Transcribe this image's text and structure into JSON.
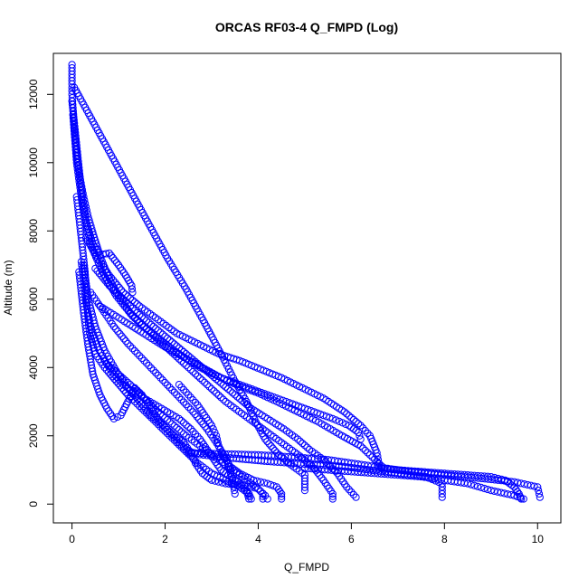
{
  "chart_data": {
    "type": "scatter",
    "title": "ORCAS RF03-4 Q_FMPD (Log)",
    "xlabel": "Q_FMPD",
    "ylabel": "Altitude (m)",
    "xlim": [
      -0.4,
      10.5
    ],
    "ylim": [
      -550,
      13200
    ],
    "x_ticks": [
      0,
      2,
      4,
      6,
      8,
      10
    ],
    "y_ticks": [
      0,
      2000,
      4000,
      6000,
      8000,
      10000,
      12000
    ],
    "marker": "open-circle",
    "color": "#0000ff",
    "grid": false,
    "series": [
      {
        "points": [
          [
            0.0,
            12870
          ],
          [
            0.0,
            12300
          ],
          [
            0.0,
            12000
          ],
          [
            0.02,
            11600
          ],
          [
            0.05,
            11000
          ],
          [
            0.08,
            10500
          ],
          [
            0.12,
            10000
          ],
          [
            0.18,
            9500
          ],
          [
            0.25,
            9000
          ],
          [
            0.35,
            8400
          ],
          [
            0.48,
            7800
          ],
          [
            0.62,
            7200
          ],
          [
            0.8,
            6600
          ],
          [
            1.0,
            6100
          ],
          [
            1.25,
            5600
          ],
          [
            1.55,
            5200
          ],
          [
            1.9,
            4800
          ],
          [
            2.3,
            4400
          ],
          [
            2.75,
            4000
          ],
          [
            3.2,
            3700
          ],
          [
            3.6,
            3450
          ],
          [
            4.0,
            3250
          ],
          [
            4.4,
            3000
          ],
          [
            4.85,
            2700
          ],
          [
            5.3,
            2400
          ],
          [
            5.8,
            2000
          ],
          [
            6.2,
            1700
          ],
          [
            6.7,
            1050
          ],
          [
            7.3,
            950
          ],
          [
            8.0,
            850
          ],
          [
            8.8,
            750
          ],
          [
            9.5,
            650
          ],
          [
            10.0,
            500
          ],
          [
            10.05,
            200
          ]
        ]
      },
      {
        "points": [
          [
            0.05,
            12200
          ],
          [
            0.45,
            11200
          ],
          [
            0.85,
            10200
          ],
          [
            1.25,
            9200
          ],
          [
            1.65,
            8200
          ],
          [
            2.05,
            7200
          ],
          [
            2.45,
            6300
          ],
          [
            2.85,
            5300
          ],
          [
            3.2,
            4400
          ],
          [
            3.5,
            3600
          ],
          [
            3.75,
            3000
          ],
          [
            3.95,
            2400
          ],
          [
            4.15,
            1900
          ],
          [
            4.4,
            1500
          ],
          [
            4.7,
            1150
          ],
          [
            5.0,
            850
          ],
          [
            5.0,
            400
          ]
        ]
      },
      {
        "points": [
          [
            0.0,
            11800
          ],
          [
            0.1,
            10500
          ],
          [
            0.2,
            9200
          ],
          [
            0.3,
            8300
          ],
          [
            0.45,
            7600
          ],
          [
            0.6,
            7300
          ],
          [
            0.8,
            7350
          ],
          [
            1.0,
            7000
          ],
          [
            1.15,
            6700
          ],
          [
            1.28,
            6400
          ],
          [
            1.3,
            6200
          ]
        ]
      },
      {
        "points": [
          [
            0.02,
            11400
          ],
          [
            0.1,
            10000
          ],
          [
            0.22,
            8800
          ],
          [
            0.4,
            7600
          ],
          [
            0.65,
            6800
          ],
          [
            0.95,
            6100
          ],
          [
            1.3,
            5500
          ],
          [
            1.7,
            5000
          ],
          [
            2.1,
            4500
          ],
          [
            2.5,
            4000
          ],
          [
            2.9,
            3500
          ],
          [
            3.3,
            3000
          ],
          [
            3.7,
            2600
          ],
          [
            4.1,
            2200
          ],
          [
            4.5,
            1800
          ],
          [
            4.9,
            1400
          ],
          [
            5.2,
            1050
          ],
          [
            5.4,
            700
          ],
          [
            5.6,
            300
          ],
          [
            5.6,
            150
          ]
        ]
      },
      {
        "points": [
          [
            0.1,
            9000
          ],
          [
            0.2,
            7800
          ],
          [
            0.28,
            6800
          ],
          [
            0.32,
            5800
          ],
          [
            0.38,
            5000
          ],
          [
            0.5,
            4400
          ],
          [
            0.7,
            4000
          ],
          [
            0.95,
            3600
          ],
          [
            1.2,
            3200
          ],
          [
            1.5,
            2800
          ],
          [
            1.8,
            2400
          ],
          [
            2.1,
            2000
          ],
          [
            2.4,
            1600
          ],
          [
            2.7,
            1200
          ],
          [
            3.0,
            900
          ],
          [
            3.3,
            700
          ],
          [
            3.6,
            500
          ],
          [
            3.8,
            300
          ],
          [
            3.85,
            150
          ]
        ]
      },
      {
        "points": [
          [
            0.2,
            7100
          ],
          [
            0.25,
            6500
          ],
          [
            0.3,
            5900
          ],
          [
            0.4,
            5200
          ],
          [
            0.55,
            4600
          ],
          [
            0.75,
            4100
          ],
          [
            1.0,
            3800
          ],
          [
            1.25,
            3500
          ],
          [
            1.55,
            3100
          ],
          [
            1.85,
            2700
          ],
          [
            2.15,
            2350
          ],
          [
            2.45,
            2000
          ],
          [
            2.75,
            1700
          ],
          [
            3.05,
            1400
          ],
          [
            3.35,
            1100
          ],
          [
            3.65,
            800
          ],
          [
            3.95,
            500
          ],
          [
            4.15,
            250
          ],
          [
            4.2,
            150
          ]
        ]
      },
      {
        "points": [
          [
            0.15,
            6800
          ],
          [
            0.25,
            5600
          ],
          [
            0.35,
            4600
          ],
          [
            0.45,
            3800
          ],
          [
            0.6,
            3200
          ],
          [
            0.75,
            2800
          ],
          [
            0.9,
            2500
          ],
          [
            1.05,
            2600
          ],
          [
            1.2,
            3000
          ],
          [
            1.35,
            3400
          ],
          [
            1.5,
            3200
          ],
          [
            1.7,
            2800
          ],
          [
            1.9,
            2400
          ],
          [
            2.1,
            2100
          ],
          [
            2.3,
            1800
          ],
          [
            2.5,
            1550
          ],
          [
            2.75,
            1450
          ],
          [
            3.05,
            1400
          ],
          [
            3.4,
            1350
          ],
          [
            3.8,
            1300
          ],
          [
            4.2,
            1250
          ],
          [
            4.7,
            1200
          ],
          [
            5.2,
            1150
          ],
          [
            5.8,
            1100
          ],
          [
            6.4,
            1000
          ],
          [
            7.0,
            900
          ],
          [
            7.6,
            800
          ],
          [
            7.95,
            600
          ],
          [
            7.95,
            200
          ]
        ]
      },
      {
        "points": [
          [
            0.3,
            7800
          ],
          [
            0.55,
            7200
          ],
          [
            0.8,
            6700
          ],
          [
            1.1,
            6200
          ],
          [
            1.45,
            5800
          ],
          [
            1.85,
            5400
          ],
          [
            2.25,
            5000
          ],
          [
            2.7,
            4700
          ],
          [
            3.15,
            4400
          ],
          [
            3.6,
            4200
          ],
          [
            4.05,
            3950
          ],
          [
            4.5,
            3700
          ],
          [
            4.95,
            3400
          ],
          [
            5.4,
            3100
          ],
          [
            5.85,
            2700
          ],
          [
            6.2,
            2300
          ],
          [
            6.4,
            2000
          ],
          [
            6.55,
            1500
          ],
          [
            6.6,
            1100
          ],
          [
            6.7,
            1000
          ]
        ]
      },
      {
        "points": [
          [
            0.5,
            6900
          ],
          [
            0.8,
            6400
          ],
          [
            1.1,
            6000
          ],
          [
            1.4,
            5600
          ],
          [
            1.75,
            5200
          ],
          [
            2.1,
            4800
          ],
          [
            2.45,
            4400
          ],
          [
            2.8,
            4000
          ],
          [
            3.15,
            3600
          ],
          [
            3.5,
            3200
          ],
          [
            3.85,
            2800
          ],
          [
            4.2,
            2500
          ],
          [
            4.55,
            2200
          ],
          [
            4.85,
            1900
          ],
          [
            5.1,
            1600
          ],
          [
            5.4,
            1300
          ],
          [
            5.7,
            900
          ],
          [
            5.9,
            500
          ],
          [
            6.1,
            200
          ]
        ]
      },
      {
        "points": [
          [
            0.4,
            6200
          ],
          [
            0.65,
            5700
          ],
          [
            0.9,
            5200
          ],
          [
            1.2,
            4700
          ],
          [
            1.55,
            4200
          ],
          [
            1.9,
            3700
          ],
          [
            2.25,
            3200
          ],
          [
            2.6,
            2700
          ],
          [
            2.9,
            2200
          ],
          [
            3.15,
            1700
          ],
          [
            3.35,
            1200
          ],
          [
            3.45,
            700
          ],
          [
            3.5,
            300
          ]
        ]
      },
      {
        "points": [
          [
            0.25,
            7000
          ],
          [
            0.35,
            6000
          ],
          [
            0.5,
            5200
          ],
          [
            0.7,
            4500
          ],
          [
            0.95,
            3900
          ],
          [
            1.2,
            3400
          ],
          [
            1.45,
            3000
          ],
          [
            1.7,
            2600
          ],
          [
            1.95,
            2300
          ],
          [
            2.2,
            2000
          ],
          [
            2.4,
            1800
          ],
          [
            2.55,
            1500
          ],
          [
            2.65,
            1200
          ],
          [
            2.8,
            900
          ],
          [
            3.0,
            700
          ],
          [
            3.3,
            600
          ],
          [
            3.7,
            550
          ],
          [
            4.0,
            450
          ],
          [
            4.1,
            300
          ],
          [
            4.1,
            150
          ]
        ]
      },
      {
        "points": [
          [
            0.6,
            5800
          ],
          [
            0.95,
            5500
          ],
          [
            1.3,
            5200
          ],
          [
            1.65,
            4900
          ],
          [
            2.0,
            4600
          ],
          [
            2.4,
            4300
          ],
          [
            2.8,
            4000
          ],
          [
            3.2,
            3700
          ],
          [
            3.6,
            3500
          ],
          [
            4.0,
            3300
          ],
          [
            4.4,
            3100
          ],
          [
            4.8,
            2900
          ],
          [
            5.2,
            2700
          ],
          [
            5.6,
            2500
          ],
          [
            5.95,
            2300
          ],
          [
            6.15,
            2100
          ],
          [
            6.2,
            1900
          ]
        ]
      },
      {
        "points": [
          [
            2.5,
            1500
          ],
          [
            3.0,
            1480
          ],
          [
            3.5,
            1460
          ],
          [
            4.0,
            1440
          ],
          [
            4.5,
            1400
          ],
          [
            5.0,
            1350
          ],
          [
            5.5,
            1300
          ],
          [
            6.0,
            1200
          ],
          [
            6.5,
            1100
          ],
          [
            7.0,
            1000
          ],
          [
            7.5,
            950
          ],
          [
            8.0,
            900
          ],
          [
            8.5,
            850
          ],
          [
            9.0,
            800
          ],
          [
            9.3,
            700
          ],
          [
            9.5,
            500
          ],
          [
            9.6,
            300
          ],
          [
            9.65,
            150
          ]
        ]
      },
      {
        "points": [
          [
            5.0,
            1050
          ],
          [
            5.5,
            1000
          ],
          [
            6.0,
            950
          ],
          [
            6.5,
            900
          ],
          [
            7.0,
            850
          ],
          [
            7.5,
            800
          ],
          [
            8.0,
            700
          ],
          [
            8.5,
            600
          ],
          [
            9.0,
            400
          ],
          [
            9.5,
            250
          ],
          [
            9.7,
            150
          ]
        ]
      },
      {
        "points": [
          [
            0.7,
            4200
          ],
          [
            0.9,
            3800
          ],
          [
            1.1,
            3500
          ],
          [
            1.3,
            3300
          ],
          [
            1.55,
            3100
          ],
          [
            1.8,
            2900
          ],
          [
            2.05,
            2700
          ],
          [
            2.3,
            2500
          ],
          [
            2.55,
            2200
          ],
          [
            2.75,
            1900
          ],
          [
            2.9,
            1600
          ],
          [
            3.05,
            1300
          ],
          [
            3.2,
            1000
          ],
          [
            3.4,
            800
          ],
          [
            3.6,
            600
          ],
          [
            3.75,
            400
          ],
          [
            3.8,
            150
          ]
        ]
      },
      {
        "points": [
          [
            2.3,
            3500
          ],
          [
            2.5,
            3200
          ],
          [
            2.7,
            2900
          ],
          [
            2.85,
            2600
          ],
          [
            3.0,
            2300
          ],
          [
            3.1,
            2000
          ],
          [
            3.15,
            1700
          ],
          [
            3.25,
            1400
          ],
          [
            3.4,
            1100
          ],
          [
            3.6,
            900
          ],
          [
            3.9,
            700
          ],
          [
            4.2,
            600
          ],
          [
            4.4,
            500
          ],
          [
            4.5,
            300
          ],
          [
            4.5,
            150
          ]
        ]
      }
    ]
  }
}
